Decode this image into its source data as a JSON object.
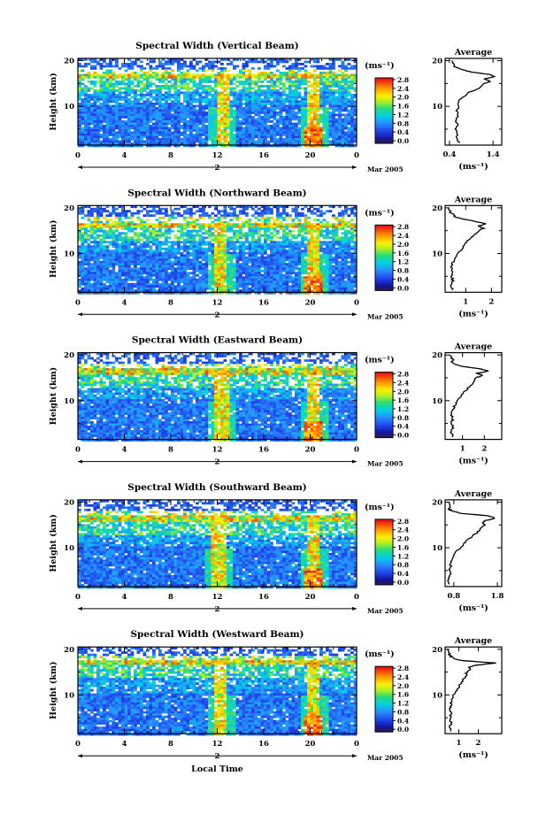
{
  "figure": {
    "xlabel": "Local Time",
    "date_label": "Mar 2005",
    "day_label": "2",
    "colorbar_unit": "(ms⁻¹)",
    "average_title": "Average",
    "average_xunit": "(ms⁻¹)"
  },
  "chart_data": [
    {
      "type": "heatmap",
      "title": "Spectral Width (Vertical Beam)",
      "ylabel": "Height (km)",
      "xlabel": "",
      "x_ticks": [
        "0",
        "4",
        "8",
        "12",
        "16",
        "20",
        "0"
      ],
      "xlim": [
        0,
        24
      ],
      "y_ticks": [
        "10",
        "20"
      ],
      "ylim": [
        1.5,
        20.5
      ],
      "colorbar": {
        "unit": "(ms⁻¹)",
        "ticks": [
          "0.0",
          "0.4",
          "0.8",
          "1.2",
          "1.6",
          "2.0",
          "2.4",
          "2.8"
        ],
        "range": [
          0,
          3.0
        ]
      },
      "features": {
        "tropopause_km": 16.5,
        "bright_column_hours": [
          12.5,
          20.3
        ]
      },
      "average": {
        "title": "Average",
        "xlabel": "(ms⁻¹)",
        "xticks": [
          "0.4",
          "1.4"
        ],
        "xlim": [
          0.3,
          1.6
        ],
        "height": [
          2,
          3,
          4,
          5,
          6,
          7,
          8,
          9,
          10,
          11,
          12,
          13,
          14,
          15,
          15.5,
          16,
          16.5,
          17,
          17.5,
          18,
          18.5,
          19,
          20
        ],
        "value": [
          0.62,
          0.55,
          0.6,
          0.55,
          0.58,
          0.55,
          0.6,
          0.57,
          0.62,
          0.6,
          0.7,
          0.85,
          1.1,
          1.2,
          1.35,
          1.2,
          1.45,
          1.3,
          0.9,
          0.7,
          0.55,
          0.5,
          0.45
        ]
      }
    },
    {
      "type": "heatmap",
      "title": "Spectral Width (Northward Beam)",
      "ylabel": "Height (km)",
      "xlabel": "",
      "x_ticks": [
        "0",
        "4",
        "8",
        "12",
        "16",
        "20",
        "0"
      ],
      "xlim": [
        0,
        24
      ],
      "y_ticks": [
        "10",
        "20"
      ],
      "ylim": [
        1.5,
        20.5
      ],
      "colorbar": {
        "unit": "(ms⁻¹)",
        "ticks": [
          "0.0",
          "0.4",
          "0.8",
          "1.2",
          "1.6",
          "2.0",
          "2.4",
          "2.8"
        ],
        "range": [
          0,
          3.0
        ]
      },
      "features": {
        "tropopause_km": 16.2,
        "bright_column_hours": [
          12.3,
          20.3
        ]
      },
      "average": {
        "title": "Average",
        "xlabel": "(ms⁻¹)",
        "xticks": [
          "1",
          "2"
        ],
        "xlim": [
          0.2,
          2.4
        ],
        "height": [
          2,
          3,
          4,
          5,
          6,
          7,
          8,
          9,
          10,
          11,
          12,
          13,
          14,
          15,
          15.5,
          16,
          16.5,
          17,
          17.5,
          18,
          18.5,
          19,
          20
        ],
        "value": [
          0.5,
          0.45,
          0.5,
          0.45,
          0.5,
          0.45,
          0.5,
          0.6,
          0.7,
          0.85,
          0.95,
          1.1,
          1.3,
          1.5,
          1.7,
          1.5,
          1.8,
          1.4,
          0.9,
          0.6,
          0.55,
          0.4,
          0.35
        ]
      }
    },
    {
      "type": "heatmap",
      "title": "Spectral Width (Eastward Beam)",
      "ylabel": "Height (km)",
      "xlabel": "",
      "x_ticks": [
        "0",
        "4",
        "8",
        "12",
        "16",
        "20",
        "0"
      ],
      "xlim": [
        0,
        24
      ],
      "y_ticks": [
        "10",
        "20"
      ],
      "ylim": [
        1.5,
        20.5
      ],
      "colorbar": {
        "unit": "(ms⁻¹)",
        "ticks": [
          "0.0",
          "0.4",
          "0.8",
          "1.2",
          "1.6",
          "2.0",
          "2.4",
          "2.8"
        ],
        "range": [
          0,
          3.0
        ]
      },
      "features": {
        "tropopause_km": 16.3,
        "bright_column_hours": [
          12.4,
          20.3
        ]
      },
      "average": {
        "title": "Average",
        "xlabel": "(ms⁻¹)",
        "xticks": [
          "1",
          "2"
        ],
        "xlim": [
          0.2,
          2.8
        ],
        "height": [
          2,
          3,
          4,
          5,
          6,
          7,
          8,
          9,
          10,
          11,
          12,
          13,
          14,
          15,
          15.5,
          16,
          16.5,
          17,
          17.5,
          18,
          18.5,
          19,
          20
        ],
        "value": [
          0.55,
          0.5,
          0.55,
          0.5,
          0.55,
          0.5,
          0.55,
          0.65,
          0.8,
          0.95,
          1.1,
          1.3,
          1.5,
          1.6,
          1.9,
          1.7,
          2.2,
          1.8,
          1.0,
          0.6,
          0.5,
          0.55,
          0.4
        ]
      }
    },
    {
      "type": "heatmap",
      "title": "Spectral Width (Southward Beam)",
      "ylabel": "Height (km)",
      "xlabel": "",
      "x_ticks": [
        "0",
        "4",
        "8",
        "12",
        "16",
        "20",
        "0"
      ],
      "xlim": [
        0,
        24
      ],
      "y_ticks": [
        "10",
        "20"
      ],
      "ylim": [
        1.5,
        20.5
      ],
      "colorbar": {
        "unit": "(ms⁻¹)",
        "ticks": [
          "0.0",
          "0.4",
          "0.8",
          "1.2",
          "1.6",
          "2.0",
          "2.4",
          "2.8"
        ],
        "range": [
          0,
          3.0
        ]
      },
      "features": {
        "tropopause_km": 16.4,
        "bright_column_hours": [
          12.2,
          20.3
        ]
      },
      "average": {
        "title": "Average",
        "xlabel": "(ms⁻¹)",
        "xticks": [
          "0.8",
          "1.8"
        ],
        "xlim": [
          0.6,
          1.9
        ],
        "height": [
          2,
          3,
          4,
          5,
          6,
          7,
          8,
          9,
          10,
          11,
          12,
          13,
          14,
          15,
          15.5,
          16,
          16.5,
          17,
          17.5,
          18,
          18.5,
          19,
          20
        ],
        "value": [
          0.7,
          0.68,
          0.72,
          0.7,
          0.73,
          0.72,
          0.78,
          0.85,
          0.95,
          1.05,
          1.15,
          1.3,
          1.4,
          1.5,
          1.45,
          1.55,
          1.75,
          1.6,
          1.0,
          0.75,
          0.7,
          0.72,
          0.68
        ]
      }
    },
    {
      "type": "heatmap",
      "title": "Spectral Width (Westward Beam)",
      "ylabel": "Height (km)",
      "xlabel": "Local Time",
      "x_ticks": [
        "0",
        "4",
        "8",
        "12",
        "16",
        "20",
        "0"
      ],
      "xlim": [
        0,
        24
      ],
      "y_ticks": [
        "10",
        "20"
      ],
      "ylim": [
        1.5,
        20.5
      ],
      "colorbar": {
        "unit": "(ms⁻¹)",
        "ticks": [
          "0.0",
          "0.4",
          "0.8",
          "1.2",
          "1.6",
          "2.0",
          "2.4",
          "2.8"
        ],
        "range": [
          0,
          3.0
        ]
      },
      "features": {
        "tropopause_km": 17.0,
        "bright_column_hours": [
          12.3,
          20.3
        ]
      },
      "average": {
        "title": "Average",
        "xlabel": "(ms⁻¹)",
        "xticks": [
          "1",
          "2"
        ],
        "xlim": [
          0.3,
          3.2
        ],
        "height": [
          2,
          3,
          4,
          5,
          6,
          7,
          8,
          9,
          10,
          11,
          12,
          13,
          14,
          15,
          15.5,
          16,
          16.5,
          17,
          17.5,
          18,
          18.5,
          19,
          20
        ],
        "value": [
          0.6,
          0.55,
          0.6,
          0.55,
          0.6,
          0.55,
          0.6,
          0.65,
          0.75,
          0.9,
          1.05,
          1.2,
          1.35,
          1.4,
          1.6,
          1.5,
          1.9,
          2.9,
          1.2,
          0.7,
          0.6,
          0.5,
          0.45
        ]
      }
    }
  ]
}
